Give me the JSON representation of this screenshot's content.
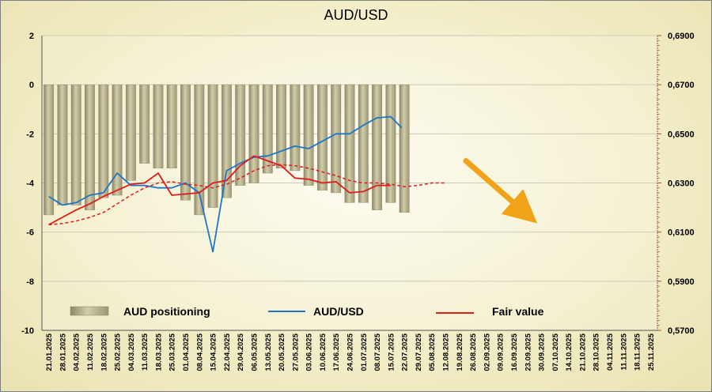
{
  "chart_data": {
    "type": "bar+line",
    "title": "AUD/USD",
    "x_dates": [
      "21.01.2025",
      "28.01.2025",
      "04.02.2025",
      "11.02.2025",
      "18.02.2025",
      "25.02.2025",
      "04.03.2025",
      "11.03.2025",
      "18.03.2025",
      "25.03.2025",
      "01.04.2025",
      "08.04.2025",
      "15.04.2025",
      "22.04.2025",
      "29.04.2025",
      "06.05.2025",
      "13.05.2025",
      "20.05.2025",
      "27.05.2025",
      "03.06.2025",
      "10.06.2025",
      "17.06.2025",
      "24.06.2025",
      "01.07.2025",
      "08.07.2025",
      "15.07.2025",
      "22.07.2025",
      "29.07.2025",
      "05.08.2025",
      "12.08.2025",
      "19.08.2025",
      "26.08.2025",
      "02.09.2025",
      "09.09.2025",
      "16.09.2025",
      "23.09.2025",
      "30.09.2025",
      "07.10.2025",
      "14.10.2025",
      "21.10.2025",
      "28.10.2025",
      "04.11.2025",
      "11.11.2025",
      "18.11.2025",
      "25.11.2025"
    ],
    "y_left": {
      "range": [
        -10,
        2
      ],
      "ticks": [
        "2",
        "0",
        "-2",
        "-4",
        "-6",
        "-8",
        "-10"
      ]
    },
    "y_right": {
      "range": [
        0.57,
        0.69
      ],
      "ticks": [
        "0,6900",
        "0,6700",
        "0,6500",
        "0,6300",
        "0,6100",
        "0,5900",
        "0,5700"
      ]
    },
    "grid": true,
    "legend_placement": "bottom",
    "series": [
      {
        "name": "AUD positioning",
        "type": "bar",
        "axis": "left",
        "color": "#b8b28a",
        "values": [
          -5.3,
          -4.9,
          -4.9,
          -5.1,
          -4.6,
          -4.5,
          -3.9,
          -3.2,
          -3.4,
          -3.4,
          -4.7,
          -5.3,
          -5.0,
          -4.6,
          -4.1,
          -4.0,
          -3.6,
          -3.4,
          -3.5,
          -4.1,
          -4.3,
          -4.4,
          -4.8,
          -4.8,
          -5.1,
          -4.8,
          -5.2
        ]
      },
      {
        "name": "AUD/USD",
        "type": "line",
        "axis": "right",
        "color": "#1f77c4",
        "points": [
          [
            0,
            0.6245
          ],
          [
            1,
            0.621
          ],
          [
            2,
            0.622
          ],
          [
            3,
            0.625
          ],
          [
            4,
            0.626
          ],
          [
            5,
            0.634
          ],
          [
            6,
            0.629
          ],
          [
            7,
            0.629
          ],
          [
            8,
            0.628
          ],
          [
            9,
            0.628
          ],
          [
            10,
            0.63
          ],
          [
            11,
            0.626
          ],
          [
            12,
            0.602
          ],
          [
            13,
            0.635
          ],
          [
            14,
            0.638
          ],
          [
            15,
            0.6405
          ],
          [
            16,
            0.641
          ],
          [
            17,
            0.643
          ],
          [
            18,
            0.645
          ],
          [
            19,
            0.644
          ],
          [
            20,
            0.647
          ],
          [
            21,
            0.65
          ],
          [
            22,
            0.65
          ],
          [
            23,
            0.6535
          ],
          [
            24,
            0.6565
          ],
          [
            25,
            0.657
          ],
          [
            25.8,
            0.6525
          ]
        ]
      },
      {
        "name": "Fair value",
        "type": "line",
        "axis": "right",
        "color": "#e01b1b",
        "points": [
          [
            0,
            0.613
          ],
          [
            1,
            0.616
          ],
          [
            2,
            0.619
          ],
          [
            3,
            0.6215
          ],
          [
            4,
            0.6245
          ],
          [
            5,
            0.627
          ],
          [
            6,
            0.6295
          ],
          [
            7,
            0.63
          ],
          [
            8,
            0.634
          ],
          [
            9,
            0.625
          ],
          [
            10,
            0.6255
          ],
          [
            11,
            0.626
          ],
          [
            12,
            0.63
          ],
          [
            13,
            0.631
          ],
          [
            14,
            0.637
          ],
          [
            15,
            0.641
          ],
          [
            16,
            0.639
          ],
          [
            17,
            0.637
          ],
          [
            18,
            0.632
          ],
          [
            19,
            0.6315
          ],
          [
            20,
            0.63
          ],
          [
            21,
            0.6305
          ],
          [
            22,
            0.626
          ],
          [
            23,
            0.6265
          ],
          [
            24,
            0.629
          ],
          [
            25,
            0.629
          ]
        ]
      },
      {
        "name": "",
        "type": "line",
        "axis": "right",
        "color": "#e01b1b",
        "dashed": true,
        "points": [
          [
            0,
            0.613
          ],
          [
            1,
            0.6135
          ],
          [
            2,
            0.6145
          ],
          [
            3,
            0.616
          ],
          [
            4,
            0.618
          ],
          [
            5,
            0.6215
          ],
          [
            6,
            0.625
          ],
          [
            7,
            0.628
          ],
          [
            8,
            0.63
          ],
          [
            9,
            0.6305
          ],
          [
            10,
            0.6295
          ],
          [
            11,
            0.629
          ],
          [
            12,
            0.628
          ],
          [
            13,
            0.6295
          ],
          [
            14,
            0.632
          ],
          [
            15,
            0.635
          ],
          [
            16,
            0.637
          ],
          [
            17,
            0.6375
          ],
          [
            18,
            0.637
          ],
          [
            19,
            0.636
          ],
          [
            20,
            0.6345
          ],
          [
            21,
            0.633
          ],
          [
            22,
            0.631
          ],
          [
            23,
            0.63
          ],
          [
            24,
            0.63
          ],
          [
            25,
            0.6295
          ],
          [
            26,
            0.6285
          ],
          [
            27,
            0.629
          ],
          [
            28,
            0.63
          ],
          [
            29,
            0.63
          ]
        ]
      }
    ],
    "legend": {
      "positioning": "AUD positioning",
      "audusd": "AUD/USD",
      "fair": "Fair value"
    },
    "annotation": {
      "type": "arrow",
      "color": "#f0a318",
      "from": [
        30.5,
        0.639
      ],
      "to": [
        34.8,
        0.618
      ]
    }
  }
}
